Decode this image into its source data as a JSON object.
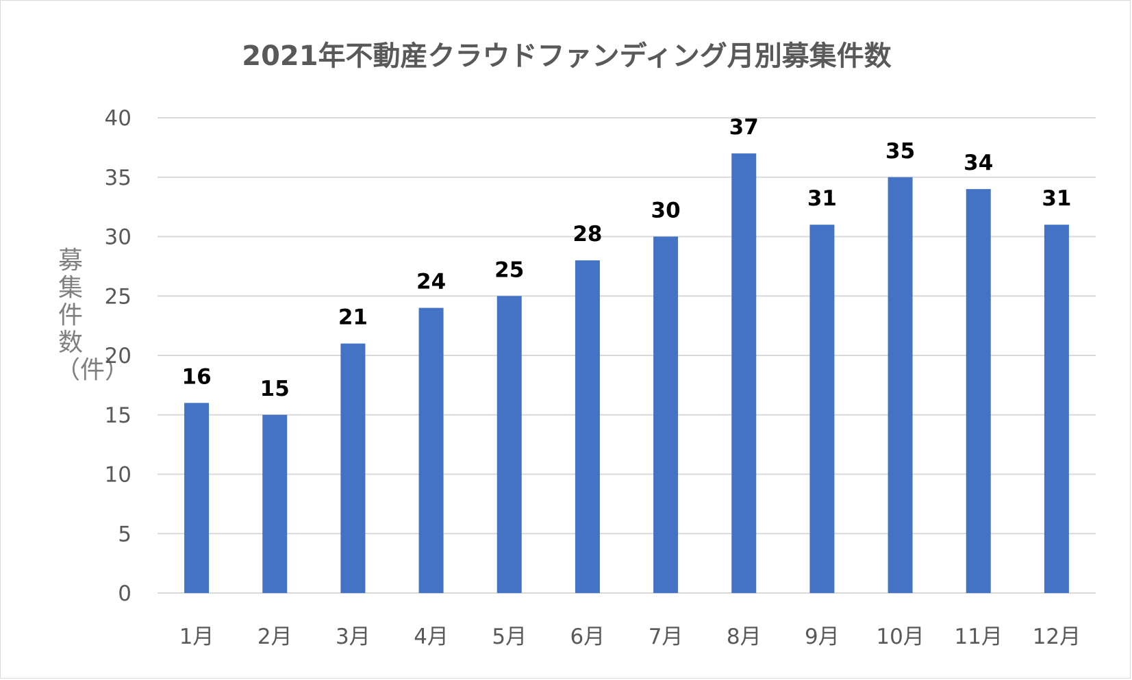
{
  "chart_data": {
    "type": "bar",
    "title": "2021年不動産クラウドファンディング月別募集件数",
    "xlabel": "",
    "ylabel": "募集件数（件）",
    "categories": [
      "1月",
      "2月",
      "3月",
      "4月",
      "5月",
      "6月",
      "7月",
      "8月",
      "9月",
      "10月",
      "11月",
      "12月"
    ],
    "values": [
      16,
      15,
      21,
      24,
      25,
      28,
      30,
      37,
      31,
      35,
      34,
      31
    ],
    "ylim": [
      0,
      40
    ],
    "yticks": [
      0,
      5,
      10,
      15,
      20,
      25,
      30,
      35,
      40
    ],
    "grid": true,
    "data_labels": true,
    "bar_color": "#4472c4",
    "grid_color": "#d9d9d9"
  }
}
